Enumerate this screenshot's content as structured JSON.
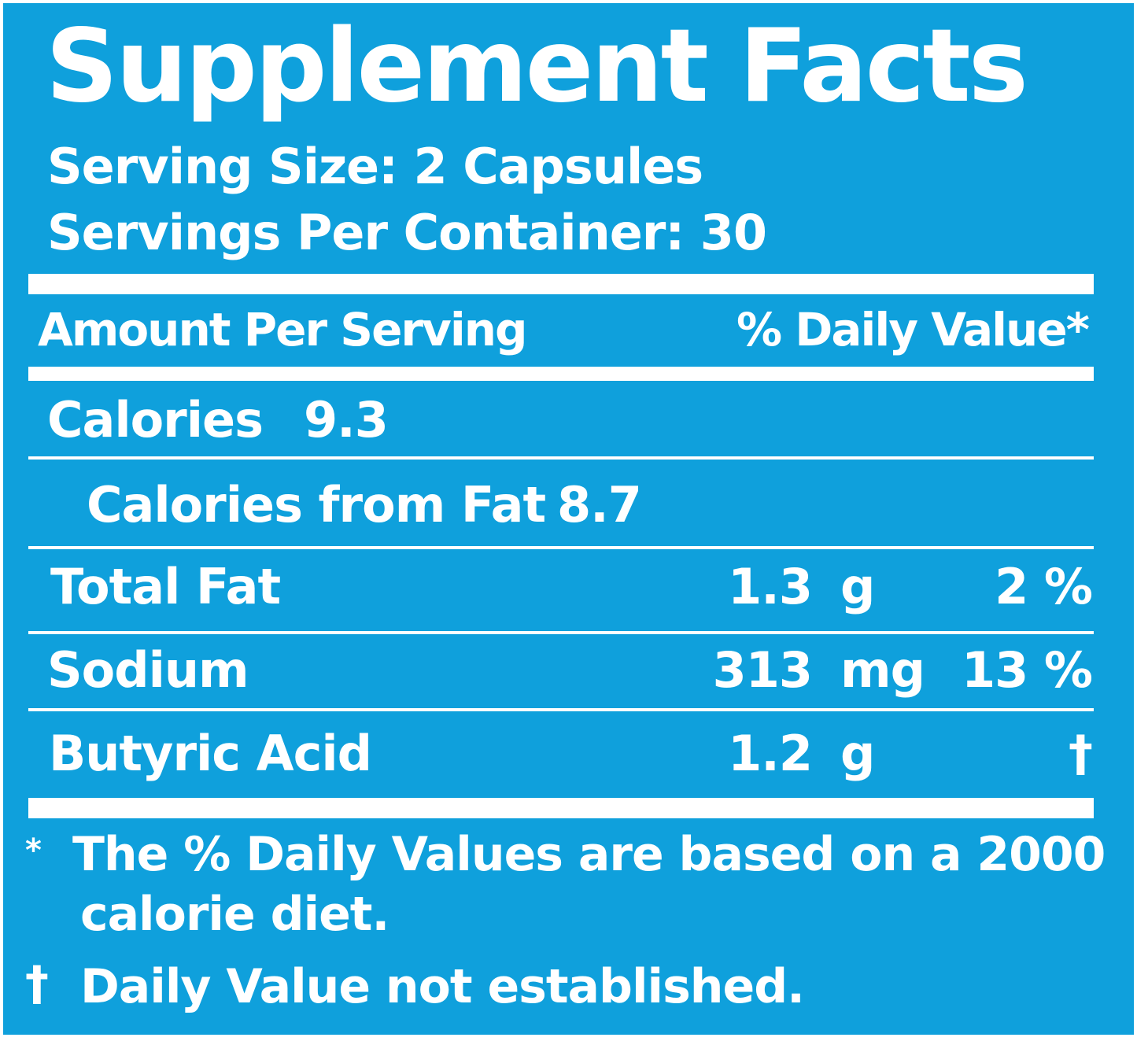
{
  "label": {
    "title": "Supplement Facts",
    "serving_size": "Serving Size: 2 Capsules",
    "servings_per_container": "Servings Per Container: 30",
    "header_amount": "Amount Per Serving",
    "header_dv": "% Daily Value*",
    "calories_label": "Calories",
    "calories_value": "9.3",
    "calories_fat_label": "Calories from Fat",
    "calories_fat_value": "8.7",
    "nutrients": [
      {
        "name": "Total Fat",
        "amount": "1.3",
        "unit": "g",
        "dv": "2 %"
      },
      {
        "name": "Sodium",
        "amount": "313",
        "unit": "mg",
        "dv": "13 %"
      },
      {
        "name": "Butyric Acid",
        "amount": "1.2",
        "unit": "g",
        "dv": "†"
      }
    ],
    "footnote_star_marker": "*",
    "footnote_star_line1": "The % Daily Values are based on a 2000",
    "footnote_star_line2": "calorie diet.",
    "footnote_dagger_marker": "†",
    "footnote_dagger": "Daily Value not established."
  },
  "colors": {
    "background": "#0fa0dc",
    "text": "#ffffff"
  }
}
